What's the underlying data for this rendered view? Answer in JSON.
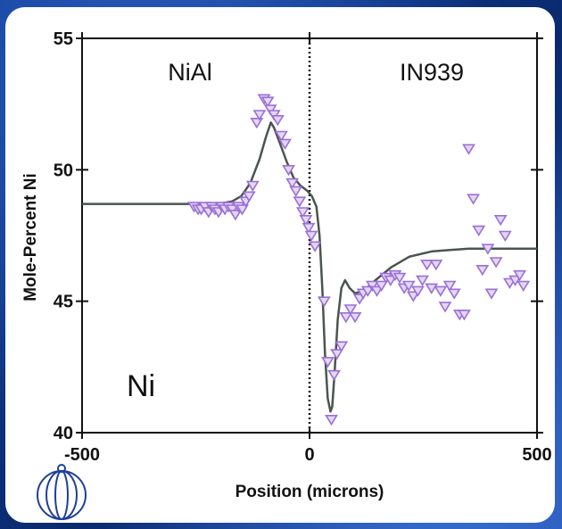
{
  "chart_data": {
    "type": "scatter",
    "xlabel": "Position (microns)",
    "ylabel": "Mole-Percent Ni",
    "xlim": [
      -500,
      500
    ],
    "ylim": [
      40,
      55
    ],
    "xticks": [
      "-500",
      "0",
      "500"
    ],
    "yticks": [
      "40",
      "45",
      "50",
      "55"
    ],
    "annotations": {
      "left_region": "NiAl",
      "right_region": "IN939",
      "element": "Ni"
    },
    "interface_x": 0,
    "colors": {
      "points": "#9b6fd6",
      "line": "#4a5550",
      "text": "#111111"
    },
    "series": [
      {
        "type": "scatter",
        "marker": "triangle-down",
        "points": [
          [
            -254,
            48.6
          ],
          [
            -245,
            48.5
          ],
          [
            -238,
            48.5
          ],
          [
            -230,
            48.6
          ],
          [
            -222,
            48.4
          ],
          [
            -215,
            48.6
          ],
          [
            -208,
            48.5
          ],
          [
            -200,
            48.4
          ],
          [
            -193,
            48.6
          ],
          [
            -186,
            48.5
          ],
          [
            -178,
            48.6
          ],
          [
            -170,
            48.5
          ],
          [
            -163,
            48.3
          ],
          [
            -156,
            48.6
          ],
          [
            -148,
            48.5
          ],
          [
            -140,
            48.8
          ],
          [
            -133,
            49.0
          ],
          [
            -125,
            49.4
          ],
          [
            -116,
            51.8
          ],
          [
            -110,
            52.1
          ],
          [
            -100,
            52.7
          ],
          [
            -92,
            52.6
          ],
          [
            -86,
            52.3
          ],
          [
            -78,
            52.1
          ],
          [
            -70,
            51.9
          ],
          [
            -62,
            51.3
          ],
          [
            -54,
            51.0
          ],
          [
            -46,
            50.0
          ],
          [
            -38,
            49.5
          ],
          [
            -30,
            49.2
          ],
          [
            -22,
            48.8
          ],
          [
            -15,
            48.4
          ],
          [
            -8,
            48.1
          ],
          [
            -2,
            47.8
          ],
          [
            4,
            47.5
          ],
          [
            12,
            47.1
          ],
          [
            32,
            45.0
          ],
          [
            40,
            42.7
          ],
          [
            48,
            40.5
          ],
          [
            54,
            42.2
          ],
          [
            60,
            43.0
          ],
          [
            70,
            43.3
          ],
          [
            80,
            44.4
          ],
          [
            90,
            44.7
          ],
          [
            100,
            44.4
          ],
          [
            110,
            45.1
          ],
          [
            118,
            45.3
          ],
          [
            128,
            45.4
          ],
          [
            138,
            45.6
          ],
          [
            148,
            45.4
          ],
          [
            158,
            45.6
          ],
          [
            168,
            45.9
          ],
          [
            178,
            45.8
          ],
          [
            188,
            46.0
          ],
          [
            198,
            45.9
          ],
          [
            208,
            45.5
          ],
          [
            218,
            45.6
          ],
          [
            228,
            45.2
          ],
          [
            238,
            45.4
          ],
          [
            248,
            45.8
          ],
          [
            258,
            46.4
          ],
          [
            268,
            45.5
          ],
          [
            278,
            46.4
          ],
          [
            288,
            45.4
          ],
          [
            298,
            44.8
          ],
          [
            308,
            45.6
          ],
          [
            318,
            45.3
          ],
          [
            330,
            44.5
          ],
          [
            340,
            44.5
          ],
          [
            350,
            50.8
          ],
          [
            360,
            48.9
          ],
          [
            372,
            47.7
          ],
          [
            380,
            46.2
          ],
          [
            392,
            47.0
          ],
          [
            400,
            45.3
          ],
          [
            410,
            46.5
          ],
          [
            420,
            48.1
          ],
          [
            430,
            47.5
          ],
          [
            440,
            45.7
          ],
          [
            452,
            45.8
          ],
          [
            462,
            46.0
          ],
          [
            470,
            45.6
          ]
        ]
      },
      {
        "type": "line",
        "points": [
          [
            -500,
            48.7
          ],
          [
            -300,
            48.7
          ],
          [
            -200,
            48.7
          ],
          [
            -170,
            48.8
          ],
          [
            -150,
            49.0
          ],
          [
            -130,
            49.5
          ],
          [
            -110,
            50.4
          ],
          [
            -95,
            51.3
          ],
          [
            -85,
            51.8
          ],
          [
            -78,
            51.6
          ],
          [
            -65,
            51.0
          ],
          [
            -50,
            50.3
          ],
          [
            -35,
            49.7
          ],
          [
            -20,
            49.4
          ],
          [
            -5,
            49.2
          ],
          [
            5,
            49.0
          ],
          [
            15,
            48.6
          ],
          [
            22,
            47.5
          ],
          [
            28,
            45.5
          ],
          [
            34,
            43.0
          ],
          [
            40,
            41.3
          ],
          [
            46,
            40.8
          ],
          [
            50,
            41.0
          ],
          [
            55,
            42.3
          ],
          [
            62,
            44.3
          ],
          [
            70,
            45.5
          ],
          [
            78,
            45.8
          ],
          [
            88,
            45.5
          ],
          [
            100,
            45.3
          ],
          [
            120,
            45.4
          ],
          [
            145,
            45.8
          ],
          [
            180,
            46.3
          ],
          [
            220,
            46.7
          ],
          [
            270,
            46.9
          ],
          [
            350,
            47.0
          ],
          [
            500,
            47.0
          ]
        ]
      }
    ]
  }
}
